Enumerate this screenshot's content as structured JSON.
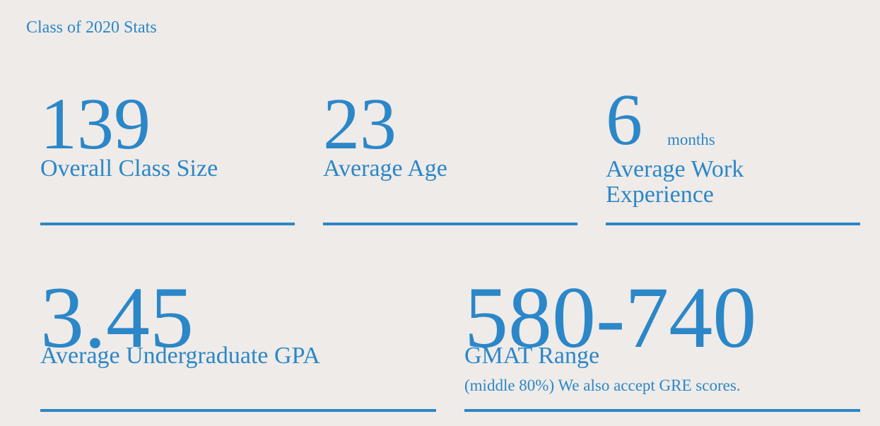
{
  "header": {
    "title": "Class of 2020 Stats"
  },
  "stats": [
    {
      "value": "139",
      "label": "Overall Class Size"
    },
    {
      "value": "23",
      "label": "Average Age"
    },
    {
      "value": "6",
      "unit": "months",
      "label": "Average Work Experience"
    },
    {
      "value": "3.45",
      "label": "Average Undergraduate GPA"
    },
    {
      "value": "580-740",
      "label": "GMAT Range",
      "note": "(middle 80%) We also accept GRE scores."
    }
  ]
}
